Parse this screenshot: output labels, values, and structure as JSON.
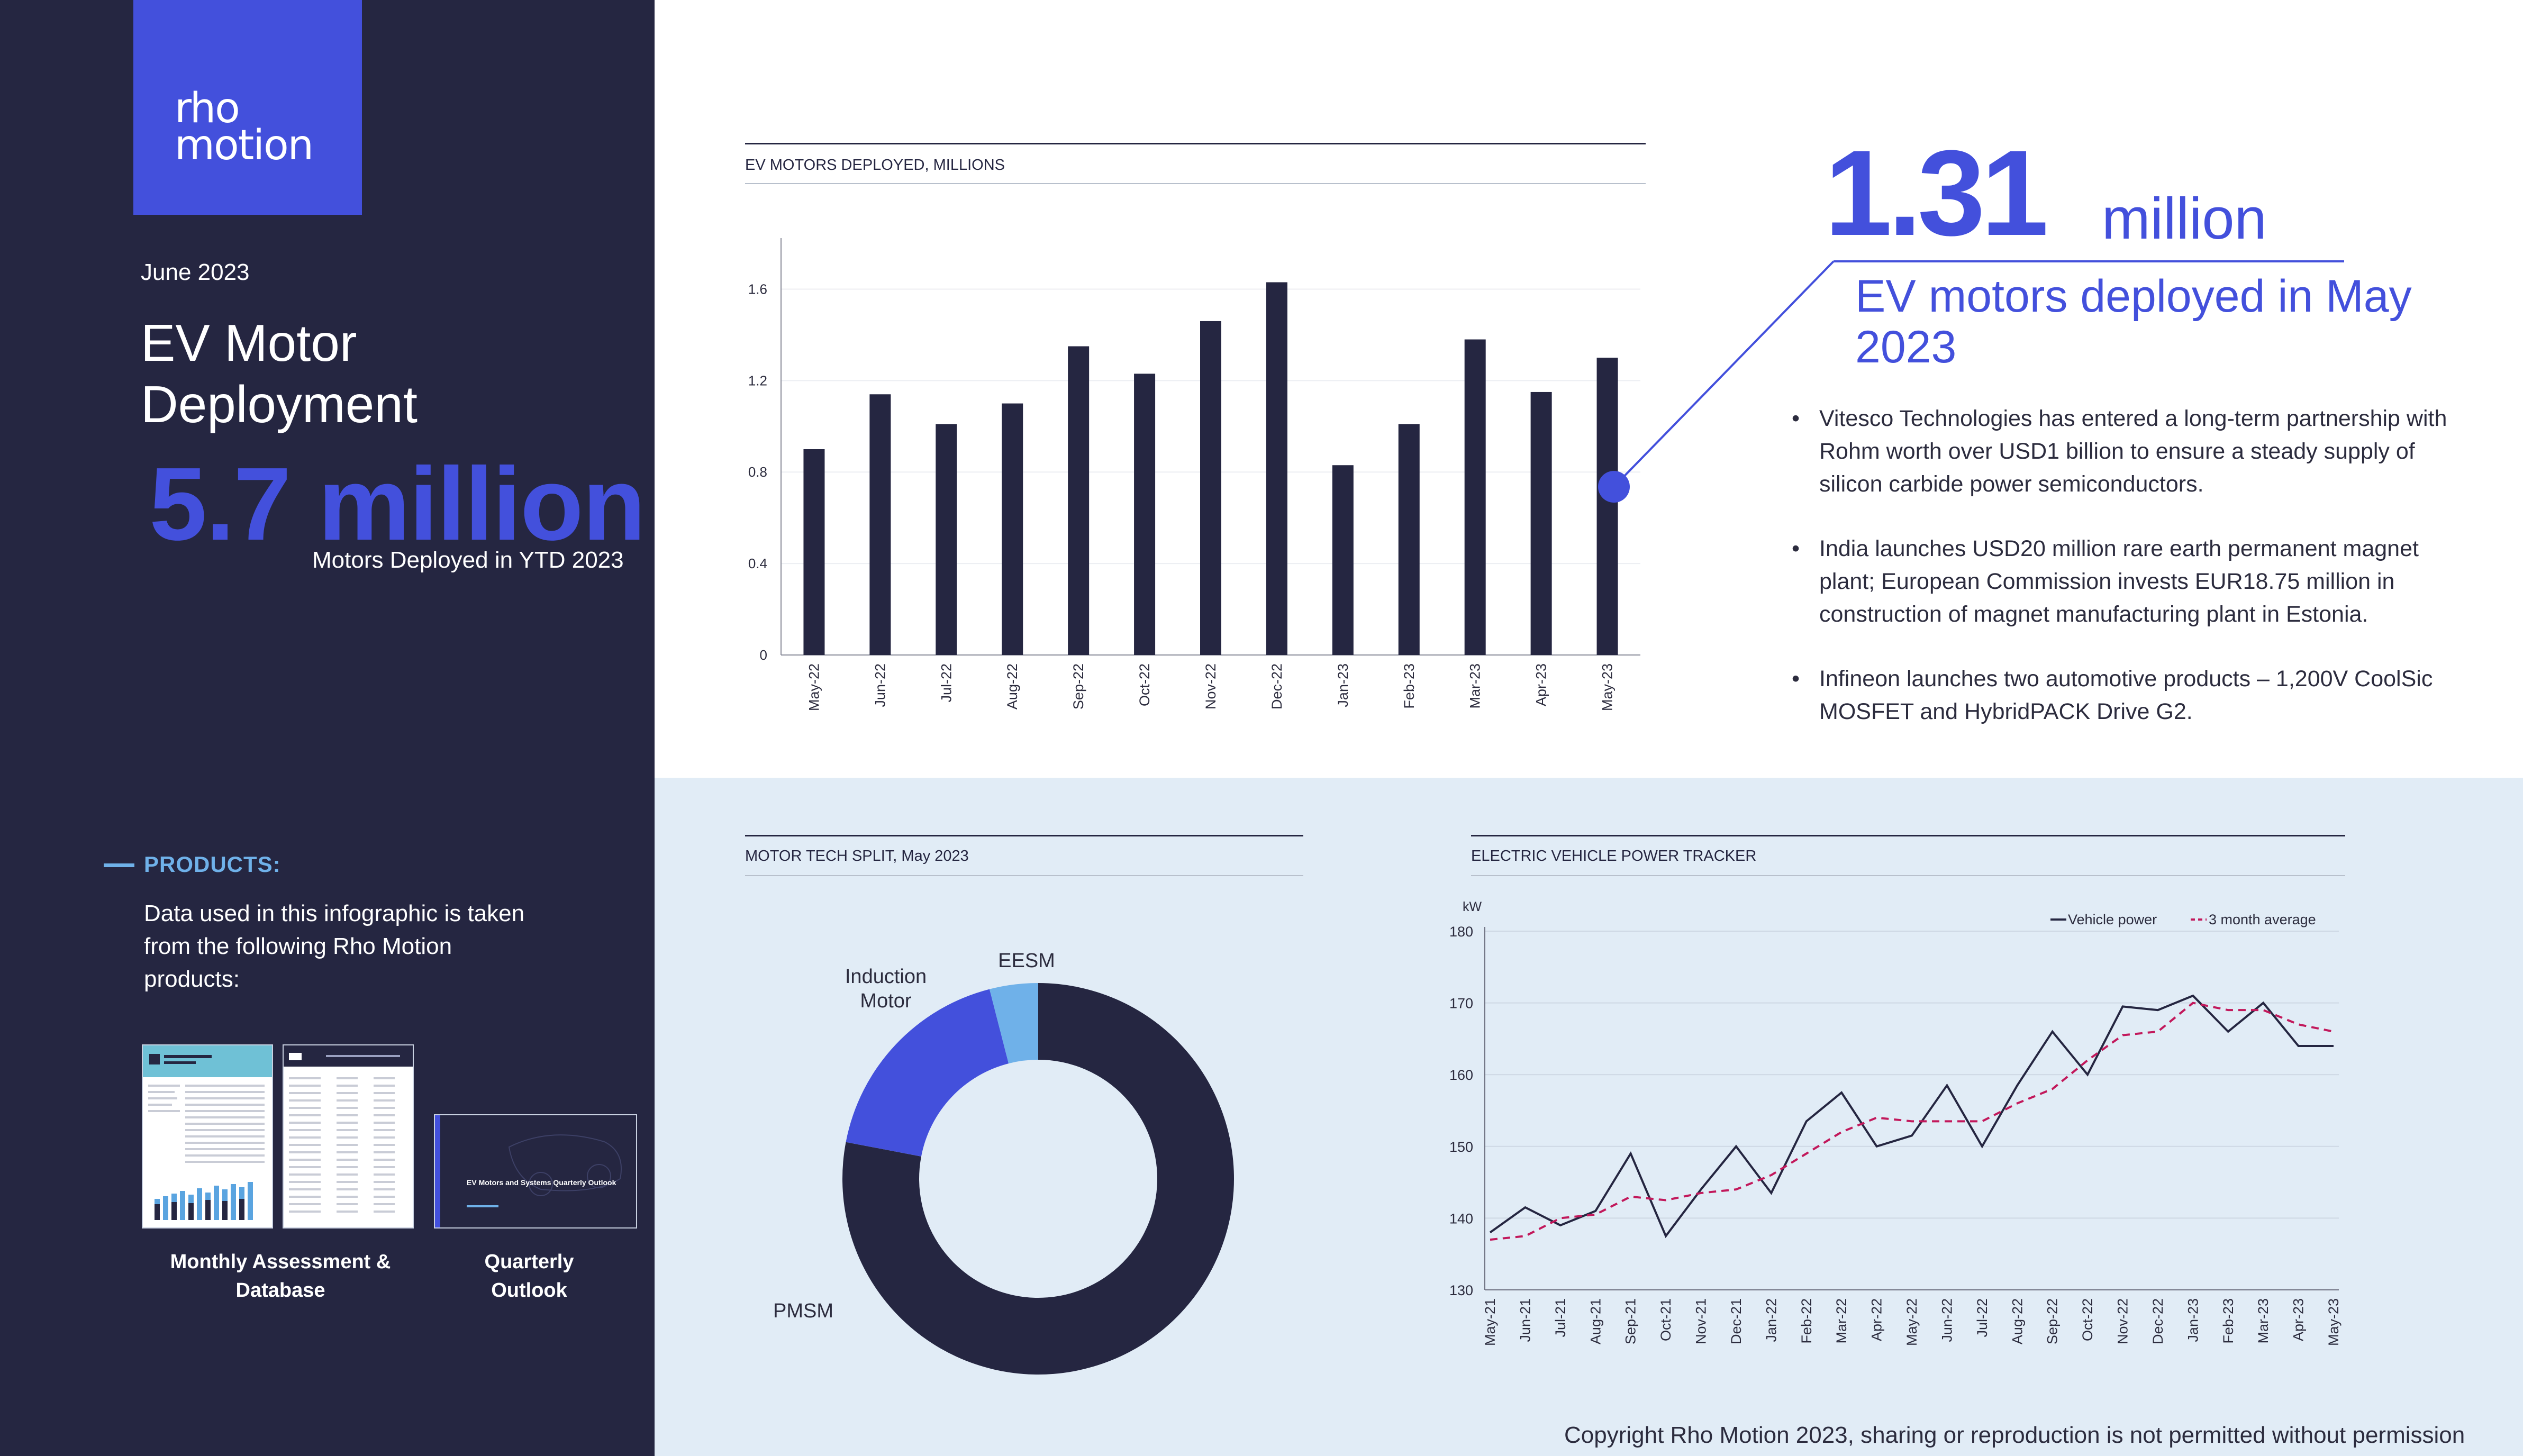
{
  "brand": {
    "logo_line1": "rho",
    "logo_line2": "motion",
    "accent": "#4350dc",
    "navy": "#252641",
    "light_blue": "#6fb1e9",
    "panel_bg": "#e1ecf6",
    "pink": "#c2185b"
  },
  "sidebar": {
    "date": "June 2023",
    "title": "EV Motor Deployment",
    "big_stat": "5.7 million",
    "big_stat_caption": "Motors Deployed in YTD 2023",
    "products_label": "PRODUCTS:",
    "products_desc": "Data used in this infographic is taken from the following Rho Motion products:",
    "product1": "Monthly Assessment & Database",
    "product2": "Quarterly Outlook",
    "thumb3_title": "EV Motors and Systems Quarterly Outlook"
  },
  "callout": {
    "number": "1.31",
    "unit": "million",
    "subtitle": "EV motors deployed in May 2023"
  },
  "news": [
    "Vitesco Technologies has entered a long-term partnership with Rohm worth over USD1 billion to ensure a steady supply of silicon carbide power semiconductors.",
    "India launches USD20 million rare earth permanent magnet plant; European Commission invests EUR18.75 million in construction of magnet manufacturing plant in Estonia.",
    "Infineon launches two automotive products – 1,200V CoolSic MOSFET and HybridPACK Drive G2."
  ],
  "copyright": "Copyright Rho Motion 2023, sharing or reproduction is not permitted without permission",
  "chart_data": [
    {
      "type": "bar",
      "title": "EV MOTORS DEPLOYED, MILLIONS",
      "categories": [
        "May-22",
        "Jun-22",
        "Jul-22",
        "Aug-22",
        "Sep-22",
        "Oct-22",
        "Nov-22",
        "Dec-22",
        "Jan-23",
        "Feb-23",
        "Mar-23",
        "Apr-23",
        "May-23"
      ],
      "values": [
        0.9,
        1.14,
        1.01,
        1.1,
        1.35,
        1.23,
        1.46,
        1.63,
        0.83,
        1.01,
        1.38,
        1.15,
        1.3
      ],
      "ylim": [
        0,
        1.8
      ],
      "yticks": [
        0,
        0.4,
        0.8,
        1.2,
        1.6
      ],
      "grid": true
    },
    {
      "type": "pie",
      "title": "MOTOR TECH SPLIT, May 2023",
      "labels": [
        "PMSM",
        "Induction Motor",
        "EESM"
      ],
      "values": [
        78,
        18,
        4
      ],
      "colors": [
        "#252641",
        "#4350dc",
        "#6fb1e9"
      ]
    },
    {
      "type": "line",
      "title": "ELECTRIC VEHICLE POWER TRACKER",
      "ylabel": "kW",
      "ylim": [
        130,
        180
      ],
      "yticks": [
        130,
        140,
        150,
        160,
        170,
        180
      ],
      "legend": "top-right",
      "categories": [
        "May-21",
        "Jun-21",
        "Jul-21",
        "Aug-21",
        "Sep-21",
        "Oct-21",
        "Nov-21",
        "Dec-21",
        "Jan-22",
        "Feb-22",
        "Mar-22",
        "Apr-22",
        "May-22",
        "Jun-22",
        "Jul-22",
        "Aug-22",
        "Sep-22",
        "Oct-22",
        "Nov-22",
        "Dec-22",
        "Jan-23",
        "Feb-23",
        "Mar-23",
        "Apr-23",
        "May-23"
      ],
      "series": [
        {
          "name": "Vehicle power",
          "values": [
            138,
            141.5,
            139,
            141,
            149,
            137.5,
            144,
            150,
            143.5,
            153.5,
            157.5,
            150,
            151.5,
            158.5,
            150,
            158.5,
            166,
            160,
            169.5,
            169,
            171,
            166,
            170,
            164,
            164
          ]
        },
        {
          "name": "3 month average",
          "values": [
            137,
            137.5,
            140,
            140.5,
            143,
            142.5,
            143.5,
            144,
            146,
            149,
            152,
            154,
            153.5,
            153.5,
            153.5,
            156,
            158,
            162,
            165.5,
            166,
            170,
            169,
            169,
            167,
            166
          ]
        }
      ]
    }
  ]
}
